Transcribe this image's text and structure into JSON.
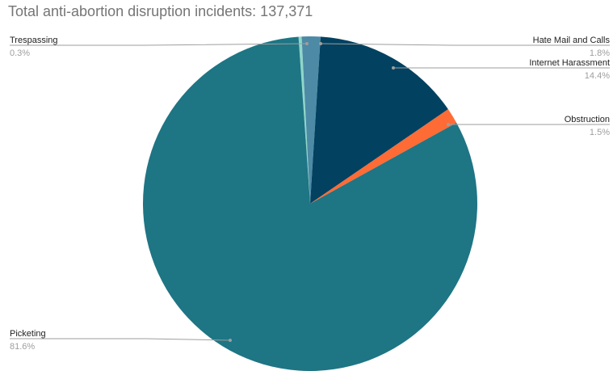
{
  "chart_data": {
    "type": "pie",
    "title": "Total anti-abortion disruption incidents: 137,371",
    "slices": [
      {
        "label": "Trespassing",
        "value": 0.3,
        "percent_label": "0.3%",
        "color": "#8fd7c9"
      },
      {
        "label": "Hate Mail and Calls",
        "value": 1.8,
        "percent_label": "1.8%",
        "color": "#4d8aa6"
      },
      {
        "label": "Internet Harassment",
        "value": 14.4,
        "percent_label": "14.4%",
        "color": "#034160"
      },
      {
        "label": "Obstruction",
        "value": 1.5,
        "percent_label": "1.5%",
        "color": "#ff6b35"
      },
      {
        "label": "Picketing",
        "value": 81.6,
        "percent_label": "81.6%",
        "color": "#1e7584"
      }
    ],
    "legend": "none"
  }
}
